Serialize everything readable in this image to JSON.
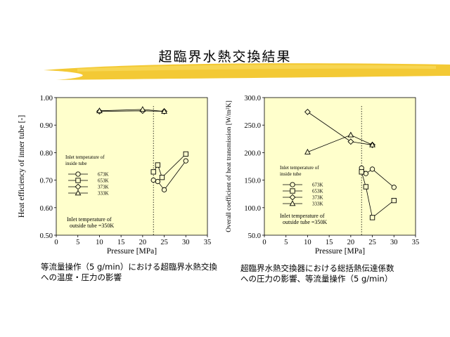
{
  "slide": {
    "title": "超臨界水熱交換結果",
    "accent_color": "#f0c020"
  },
  "captions": {
    "left": "等流量操作（5 g/min）における超臨界水熱交換\nへの温度・圧力の影響",
    "right": "超臨界水熱交換器における総括熱伝達係数\nへの圧力の影響、等流量操作（5 g/min）"
  },
  "chart_data": [
    {
      "type": "scatter",
      "plot_bg": "#ffffcc",
      "xlabel": "Pressure [MPa]",
      "ylabel": "Heat efficiency of inner tube [-]",
      "xlim": [
        0,
        35
      ],
      "ylim": [
        0.5,
        1.0
      ],
      "xticks": [
        "0",
        "5",
        "10",
        "15",
        "20",
        "25",
        "30",
        "35"
      ],
      "yticks": [
        "0.50",
        "0.60",
        "0.70",
        "0.80",
        "0.90",
        "1.00"
      ],
      "critical_pressure_line": 22.5,
      "legend_title": "Inlet temperature of\ninside tube",
      "legend_position": "middle-left",
      "note": "Inlet temperature of\noutside tube =350K",
      "series": [
        {
          "name": "673K",
          "marker": "circle",
          "x": [
            22.5,
            23.5,
            25,
            30
          ],
          "y": [
            0.7,
            0.695,
            0.665,
            0.77
          ]
        },
        {
          "name": "653K",
          "marker": "square",
          "x": [
            22.5,
            23.5,
            24.5,
            30
          ],
          "y": [
            0.73,
            0.755,
            0.71,
            0.795
          ]
        },
        {
          "name": "373K",
          "marker": "diamond",
          "x": [
            10,
            20,
            25
          ],
          "y": [
            0.95,
            0.952,
            0.95
          ]
        },
        {
          "name": "333K",
          "marker": "triangle",
          "x": [
            10,
            20,
            25
          ],
          "y": [
            0.952,
            0.957,
            0.95
          ]
        }
      ]
    },
    {
      "type": "scatter",
      "plot_bg": "#ffffcc",
      "xlabel": "Pressure [MPa]",
      "ylabel": "Overall coefficient of heat transmission [W/m²K]",
      "xlim": [
        0,
        35
      ],
      "ylim": [
        50,
        300
      ],
      "xticks": [
        "0",
        "5",
        "10",
        "15",
        "20",
        "25",
        "30",
        "35"
      ],
      "yticks": [
        "50.0",
        "100.0",
        "150.0",
        "200.0",
        "250.0",
        "300.0"
      ],
      "critical_pressure_line": 22.5,
      "legend_title": "Inlet temperature of\ninside tube",
      "legend_position": "middle-left",
      "note": "Inlet temperature of\noutside tube =350K",
      "series": [
        {
          "name": "673K",
          "marker": "circle",
          "x": [
            22.5,
            23.5,
            25,
            30
          ],
          "y": [
            172,
            162,
            170,
            137
          ]
        },
        {
          "name": "653K",
          "marker": "square",
          "x": [
            22.5,
            23.5,
            25,
            30
          ],
          "y": [
            165,
            138,
            82,
            113
          ]
        },
        {
          "name": "373K",
          "marker": "diamond",
          "x": [
            10,
            20,
            25
          ],
          "y": [
            274,
            220,
            214
          ]
        },
        {
          "name": "333K",
          "marker": "triangle",
          "x": [
            10,
            20,
            25
          ],
          "y": [
            201,
            232,
            214
          ]
        }
      ]
    }
  ]
}
